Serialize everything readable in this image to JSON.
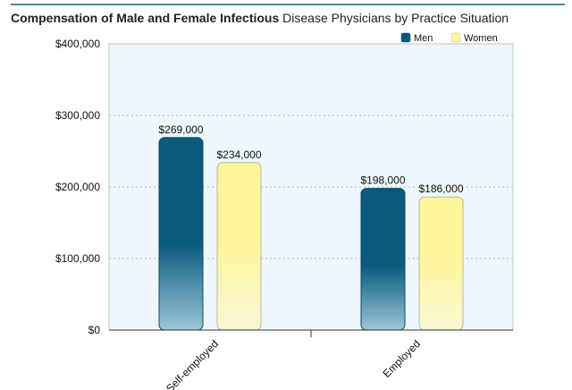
{
  "chart_data": {
    "type": "bar",
    "title_bold": "Compensation of Male and Female Infectious",
    "title_rest": "Disease Physicians by Practice Situation",
    "categories": [
      "Self-employed",
      "Employed"
    ],
    "series": [
      {
        "name": "Men",
        "values": [
          269000,
          198000
        ],
        "color": "#0a5a7e",
        "label_texts": [
          "$269,000",
          "$198,000"
        ]
      },
      {
        "name": "Women",
        "values": [
          234000,
          186000
        ],
        "color": "#fff59a",
        "label_texts": [
          "$234,000",
          "$186,000"
        ]
      }
    ],
    "ylim": [
      0,
      400000
    ],
    "yticks": [
      0,
      100000,
      200000,
      300000,
      400000
    ],
    "ytick_labels": [
      "$0",
      "$100,000",
      "$200,000",
      "$300,000",
      "$400,000"
    ],
    "grid": true,
    "legend_position": "top-right",
    "plot_background": "#eef7fc"
  }
}
